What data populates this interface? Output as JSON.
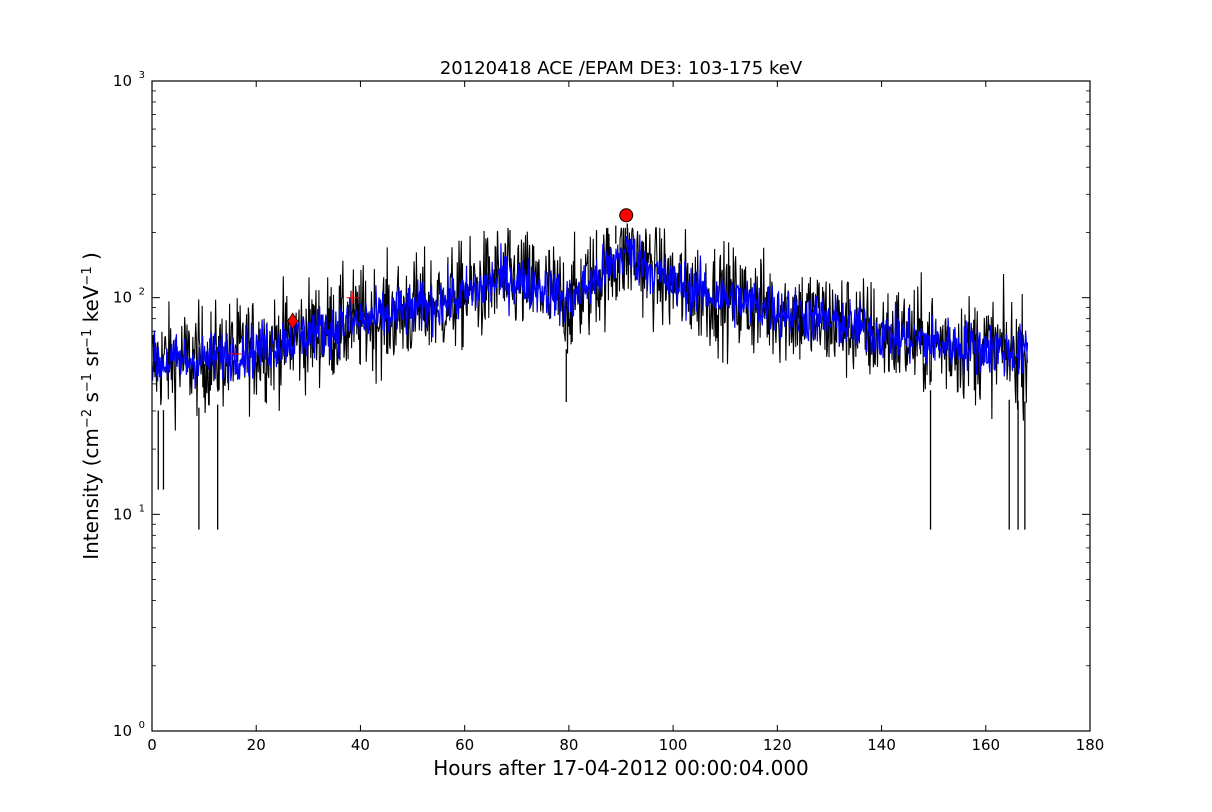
{
  "chart_data": {
    "type": "line",
    "title": "20120418 ACE /EPAM DE3: 103-175 keV",
    "xlabel": "Hours after 17-04-2012 00:00:04.000",
    "ylabel_parts": [
      "Intensity (cm",
      "−2",
      " s",
      "−1",
      " sr",
      "−1",
      " keV",
      "−1",
      " )"
    ],
    "xlim": [
      0,
      180
    ],
    "ylim": [
      1,
      1000
    ],
    "yscale": "log",
    "grid": false,
    "x_ticks": [
      0,
      20,
      40,
      60,
      80,
      100,
      120,
      140,
      160,
      180
    ],
    "x_tick_labels": [
      "0",
      "20",
      "40",
      "60",
      "80",
      "100",
      "120",
      "140",
      "160",
      "180"
    ],
    "y_ticks": [
      1,
      10,
      100,
      1000
    ],
    "y_tick_labels": [
      {
        "base": "10",
        "exp": "0"
      },
      {
        "base": "10",
        "exp": "1"
      },
      {
        "base": "10",
        "exp": "2"
      },
      {
        "base": "10",
        "exp": "3"
      }
    ],
    "series": [
      {
        "role": "raw_intensity",
        "color": "#000000",
        "x_range": [
          0,
          168
        ],
        "trend": [
          [
            0,
            50
          ],
          [
            10,
            52
          ],
          [
            20,
            58
          ],
          [
            30,
            68
          ],
          [
            40,
            78
          ],
          [
            50,
            88
          ],
          [
            60,
            102
          ],
          [
            66,
            120
          ],
          [
            70,
            120
          ],
          [
            75,
            110
          ],
          [
            80,
            95
          ],
          [
            84,
            115
          ],
          [
            88,
            140
          ],
          [
            91,
            165
          ],
          [
            95,
            140
          ],
          [
            100,
            115
          ],
          [
            110,
            100
          ],
          [
            120,
            88
          ],
          [
            130,
            78
          ],
          [
            140,
            68
          ],
          [
            150,
            62
          ],
          [
            160,
            58
          ],
          [
            168,
            55
          ]
        ],
        "spread_dex": 0.22,
        "spikes_down": [
          [
            9,
            8.5
          ],
          [
            12.6,
            8.5
          ],
          [
            149.4,
            8.5
          ],
          [
            164.5,
            8.5
          ],
          [
            166.2,
            8.5
          ],
          [
            167.5,
            8.5
          ],
          [
            79.5,
            33
          ],
          [
            1.2,
            13
          ],
          [
            2.2,
            13
          ]
        ],
        "spikes_up": [
          [
            66.3,
            200
          ],
          [
            68.7,
            205
          ],
          [
            85.3,
            205
          ],
          [
            89,
            215
          ],
          [
            91.2,
            220
          ]
        ]
      },
      {
        "role": "smoothed_intensity",
        "color": "#0000ff",
        "x_range": [
          0,
          168
        ],
        "spread_dex": 0.11
      }
    ],
    "markers": [
      {
        "shape": "plus",
        "x": 16,
        "y": 55,
        "color": "#ff0000"
      },
      {
        "shape": "plus",
        "x": 38.5,
        "y": 100,
        "color": "#ff0000"
      },
      {
        "shape": "diamond",
        "x": 27,
        "y": 78,
        "color": "#ff0000"
      },
      {
        "shape": "circle",
        "x": 91,
        "y": 240,
        "color": "#ff0000"
      }
    ]
  }
}
